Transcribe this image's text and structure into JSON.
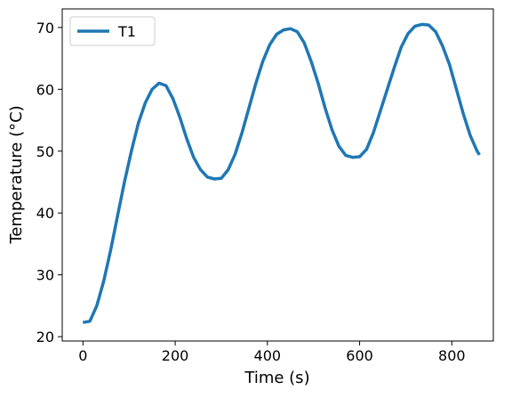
{
  "chart_data": {
    "type": "line",
    "xlabel": "Time (s)",
    "ylabel": "Temperature (°C)",
    "x": [
      0,
      15,
      30,
      45,
      60,
      75,
      90,
      105,
      120,
      135,
      150,
      165,
      180,
      195,
      210,
      225,
      240,
      255,
      270,
      285,
      300,
      315,
      330,
      345,
      360,
      375,
      390,
      405,
      420,
      435,
      450,
      465,
      480,
      495,
      510,
      525,
      540,
      555,
      570,
      585,
      600,
      615,
      630,
      645,
      660,
      675,
      690,
      705,
      720,
      735,
      750,
      765,
      780,
      795,
      810,
      825,
      840,
      855,
      860
    ],
    "series": [
      {
        "name": "T1",
        "color": "#1f77b4",
        "values": [
          22.3,
          22.5,
          25,
          29,
          34,
          39.5,
          45,
          50,
          54.5,
          57.8,
          60,
          61,
          60.6,
          58.5,
          55.5,
          52,
          49,
          47,
          45.8,
          45.5,
          45.6,
          47,
          49.5,
          53,
          57,
          61,
          64.5,
          67.2,
          68.9,
          69.6,
          69.8,
          69.3,
          67.5,
          64.5,
          61,
          57,
          53.5,
          50.8,
          49.3,
          49,
          49.1,
          50.3,
          53,
          56.5,
          60,
          63.5,
          66.8,
          69,
          70.2,
          70.5,
          70.4,
          69.3,
          67,
          64,
          60,
          56,
          52.5,
          50,
          49.4
        ]
      }
    ],
    "xlim": [
      -45,
      890
    ],
    "ylim": [
      19.3,
      73
    ],
    "xticks": [
      0,
      200,
      400,
      600,
      800
    ],
    "yticks": [
      20,
      30,
      40,
      50,
      60,
      70
    ],
    "legend": "upper left"
  }
}
